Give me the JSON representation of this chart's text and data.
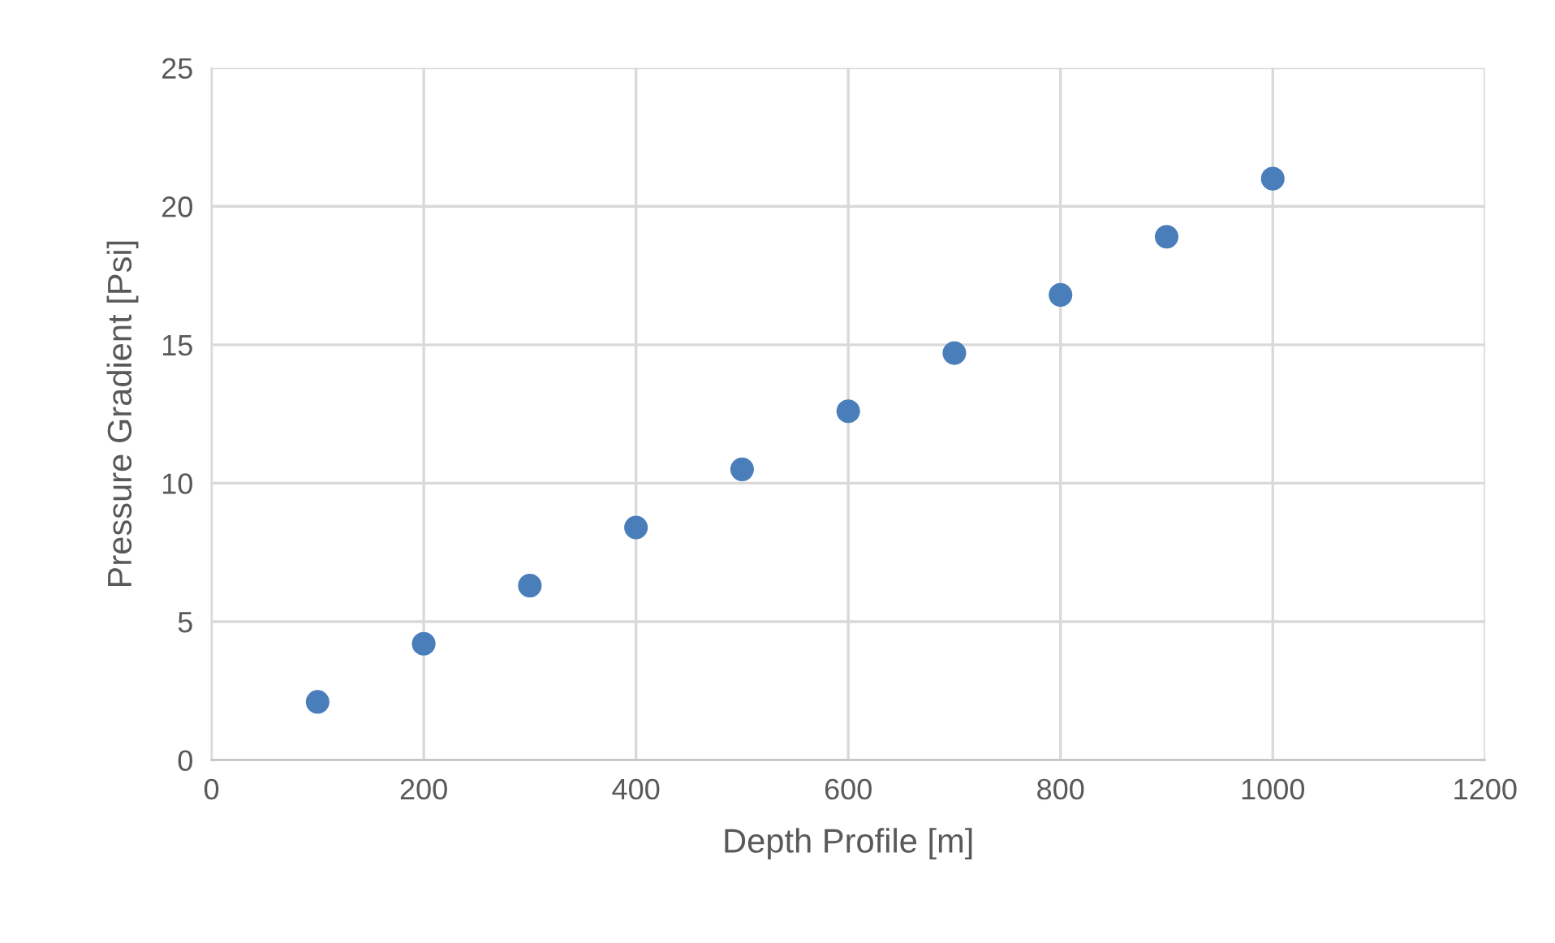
{
  "chart_data": {
    "type": "scatter",
    "xlabel": "Depth Profile [m]",
    "ylabel": "Pressure Gradient [Psi]",
    "x": [
      100,
      200,
      300,
      400,
      500,
      600,
      700,
      800,
      900,
      1000
    ],
    "series": [
      {
        "color": "#4a7ebb",
        "values": [
          2.1,
          4.2,
          6.3,
          8.4,
          10.5,
          12.6,
          14.7,
          16.8,
          18.9,
          21.0
        ]
      }
    ],
    "xlim": [
      0,
      1200
    ],
    "xticks": [
      0,
      200,
      400,
      600,
      800,
      1000,
      1200
    ],
    "ylim": [
      0,
      25
    ],
    "yticks": [
      0,
      5,
      10,
      15,
      20,
      25
    ],
    "grid": true,
    "marker": "circle"
  }
}
